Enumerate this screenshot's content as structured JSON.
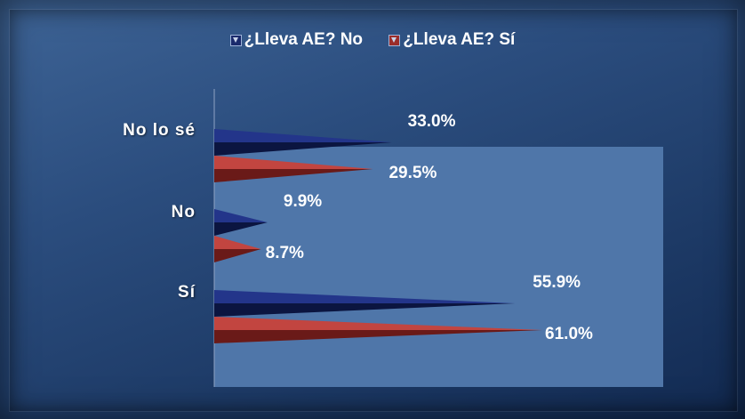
{
  "chart_data": {
    "type": "bar",
    "orientation": "horizontal",
    "categories": [
      "No lo sé",
      "No",
      "Sí"
    ],
    "series": [
      {
        "name": "¿Lleva AE? No",
        "values": [
          33.0,
          9.9,
          55.9
        ],
        "labels": [
          "33.0%",
          "9.9%",
          "55.9%"
        ],
        "color": "#1a2a6c"
      },
      {
        "name": "¿Lleva AE? Sí",
        "values": [
          29.5,
          8.7,
          61.0
        ],
        "labels": [
          "29.5%",
          "8.7%",
          "61.0%"
        ],
        "color": "#9b2d2a"
      }
    ],
    "xlim": [
      0,
      100
    ],
    "legend_position": "top",
    "grid": false,
    "plot_background": "#4f76a9",
    "background": "#2b4d7e"
  }
}
